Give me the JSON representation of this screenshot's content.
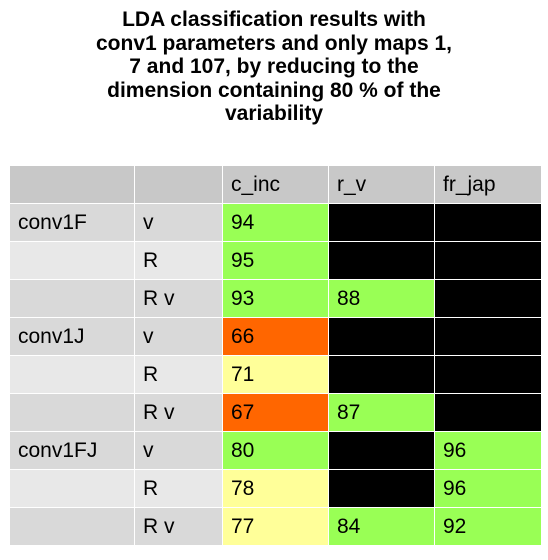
{
  "chart_data": {
    "type": "table",
    "title_lines": [
      "LDA classification results with",
      "conv1 parameters and only maps 1,",
      "7 and 107, by reducing to the",
      "dimension containing 80 % of the",
      "variability"
    ],
    "columns": [
      "",
      "",
      "c_inc",
      "r_v",
      "fr_jap"
    ],
    "rows": [
      {
        "group": "conv1F",
        "sub": "v",
        "cells": [
          94,
          null,
          null
        ]
      },
      {
        "group": "",
        "sub": "R",
        "cells": [
          95,
          null,
          null
        ]
      },
      {
        "group": "",
        "sub": "R v",
        "cells": [
          93,
          88,
          null
        ]
      },
      {
        "group": "conv1J",
        "sub": "v",
        "cells": [
          66,
          null,
          null
        ]
      },
      {
        "group": "",
        "sub": "R",
        "cells": [
          71,
          null,
          null
        ]
      },
      {
        "group": "",
        "sub": "R v",
        "cells": [
          67,
          87,
          null
        ]
      },
      {
        "group": "conv1FJ",
        "sub": "v",
        "cells": [
          80,
          null,
          96
        ]
      },
      {
        "group": "",
        "sub": "R",
        "cells": [
          78,
          null,
          96
        ]
      },
      {
        "group": "",
        "sub": "R v",
        "cells": [
          77,
          84,
          92
        ]
      }
    ],
    "empty_cell_color": "#000000",
    "color_scale": [
      {
        "min": 80,
        "color": "#99ff55"
      },
      {
        "min": 70,
        "color": "#ffff99"
      },
      {
        "min": 0,
        "color": "#ff6600"
      }
    ]
  }
}
